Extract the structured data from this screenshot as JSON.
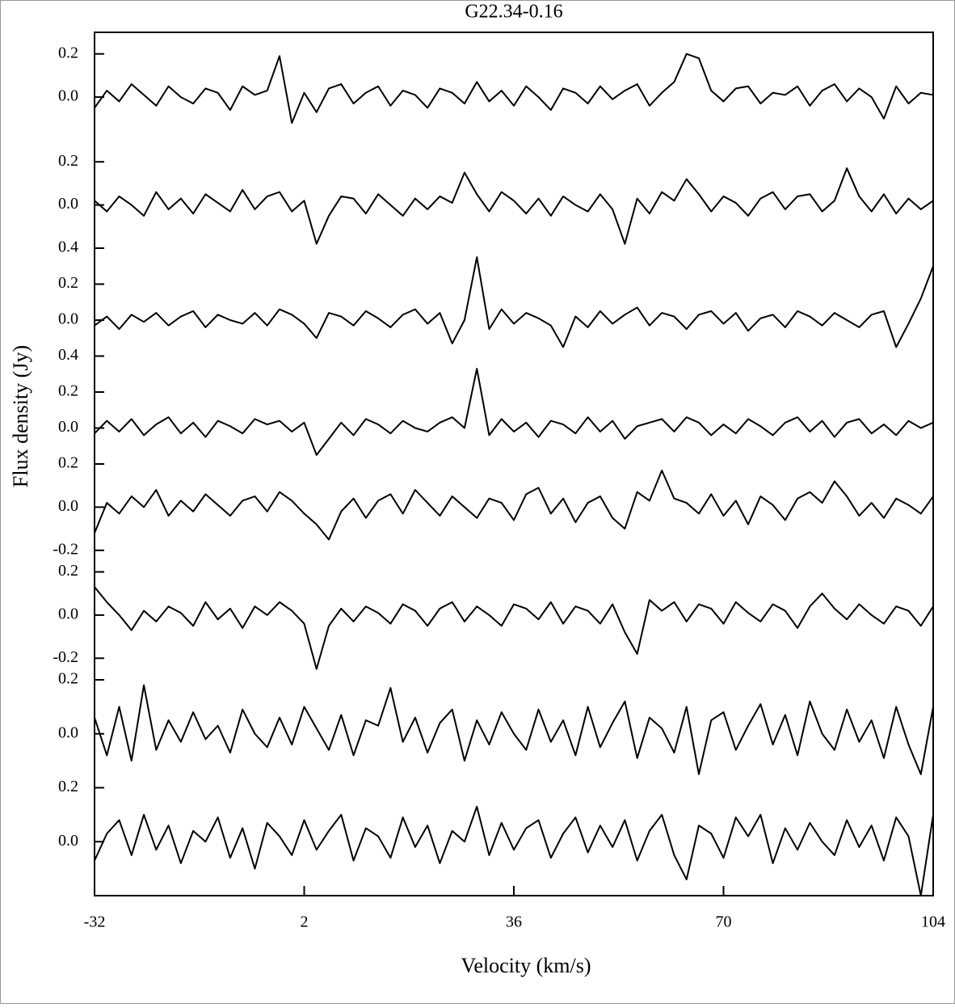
{
  "chart_data": {
    "type": "line",
    "title": "G22.34-0.16",
    "xlabel": "Velocity (km/s)",
    "ylabel": "Flux density (Jy)",
    "color": "#000000",
    "x": [
      -32,
      -30,
      -28,
      -26,
      -24,
      -22,
      -20,
      -18,
      -16,
      -14,
      -12,
      -10,
      -8,
      -6,
      -4,
      -2,
      0,
      2,
      4,
      6,
      8,
      10,
      12,
      14,
      16,
      18,
      20,
      22,
      24,
      26,
      28,
      30,
      32,
      34,
      36,
      38,
      40,
      42,
      44,
      46,
      48,
      50,
      52,
      54,
      56,
      58,
      60,
      62,
      64,
      66,
      68,
      70,
      72,
      74,
      76,
      78,
      80,
      82,
      84,
      86,
      88,
      90,
      92,
      94,
      96,
      98,
      100,
      102,
      104
    ],
    "xlim": [
      -32,
      104
    ],
    "xticks": [
      -32,
      2,
      36,
      70,
      104
    ],
    "series": [
      {
        "ylim": [
          -0.2,
          0.3
        ],
        "yticks": [
          0.2,
          {
            "value": 0,
            "label": "0.0"
          }
        ],
        "values": [
          -0.05,
          0.03,
          -0.02,
          0.06,
          0.01,
          -0.04,
          0.05,
          0.0,
          -0.03,
          0.04,
          0.02,
          -0.06,
          0.05,
          0.01,
          0.03,
          0.19,
          -0.12,
          0.02,
          -0.07,
          0.04,
          0.06,
          -0.03,
          0.02,
          0.05,
          -0.04,
          0.03,
          0.01,
          -0.05,
          0.04,
          0.02,
          -0.03,
          0.07,
          -0.02,
          0.03,
          -0.04,
          0.05,
          0.0,
          -0.06,
          0.04,
          0.02,
          -0.03,
          0.05,
          -0.01,
          0.03,
          0.06,
          -0.04,
          0.02,
          0.07,
          0.2,
          0.18,
          0.03,
          -0.02,
          0.04,
          0.05,
          -0.03,
          0.02,
          0.01,
          0.05,
          -0.04,
          0.03,
          0.06,
          -0.02,
          0.04,
          0.0,
          -0.1,
          0.05,
          -0.03,
          0.02,
          0.01
        ]
      },
      {
        "ylim": [
          -0.2,
          0.3
        ],
        "yticks": [
          0.2,
          {
            "value": 0,
            "label": "0.0"
          }
        ],
        "values": [
          0.02,
          -0.03,
          0.04,
          0.0,
          -0.05,
          0.06,
          -0.02,
          0.03,
          -0.04,
          0.05,
          0.01,
          -0.03,
          0.07,
          -0.02,
          0.04,
          0.06,
          -0.03,
          0.02,
          -0.18,
          -0.05,
          0.04,
          0.03,
          -0.04,
          0.05,
          0.0,
          -0.05,
          0.03,
          -0.02,
          0.04,
          0.01,
          0.15,
          0.05,
          -0.03,
          0.06,
          0.02,
          -0.04,
          0.03,
          -0.05,
          0.04,
          0.0,
          -0.03,
          0.05,
          -0.02,
          -0.18,
          0.03,
          -0.04,
          0.06,
          0.02,
          0.12,
          0.05,
          -0.03,
          0.04,
          0.01,
          -0.05,
          0.03,
          0.06,
          -0.02,
          0.04,
          0.05,
          -0.03,
          0.02,
          0.17,
          0.04,
          -0.03,
          0.05,
          -0.04,
          0.03,
          -0.02,
          0.02
        ]
      },
      {
        "ylim": [
          -0.2,
          0.4
        ],
        "yticks": [
          0.4,
          0.2,
          {
            "value": 0,
            "label": "0.0"
          }
        ],
        "values": [
          -0.03,
          0.02,
          -0.05,
          0.03,
          -0.01,
          0.04,
          -0.03,
          0.02,
          0.05,
          -0.04,
          0.03,
          0.0,
          -0.02,
          0.04,
          -0.03,
          0.06,
          0.03,
          -0.02,
          -0.1,
          0.04,
          0.02,
          -0.03,
          0.05,
          0.01,
          -0.04,
          0.03,
          0.06,
          -0.02,
          0.04,
          -0.13,
          0.0,
          0.35,
          -0.05,
          0.06,
          -0.02,
          0.04,
          0.01,
          -0.03,
          -0.15,
          0.02,
          -0.04,
          0.05,
          -0.02,
          0.03,
          0.07,
          -0.03,
          0.04,
          0.02,
          -0.05,
          0.03,
          0.05,
          -0.02,
          0.04,
          -0.06,
          0.01,
          0.03,
          -0.04,
          0.05,
          0.02,
          -0.03,
          0.04,
          0.0,
          -0.04,
          0.03,
          0.05,
          -0.15,
          -0.02,
          0.12,
          0.3
        ]
      },
      {
        "ylim": [
          -0.2,
          0.4
        ],
        "yticks": [
          0.4,
          0.2,
          {
            "value": 0,
            "label": "0.0"
          }
        ],
        "values": [
          -0.03,
          0.04,
          -0.02,
          0.05,
          -0.04,
          0.02,
          0.06,
          -0.03,
          0.03,
          -0.05,
          0.04,
          0.01,
          -0.03,
          0.05,
          0.02,
          0.04,
          -0.02,
          0.03,
          -0.15,
          -0.06,
          0.03,
          -0.04,
          0.05,
          0.02,
          -0.03,
          0.04,
          0.0,
          -0.02,
          0.03,
          0.06,
          0.0,
          0.33,
          -0.04,
          0.05,
          -0.02,
          0.03,
          -0.05,
          0.04,
          0.02,
          -0.03,
          0.06,
          -0.02,
          0.04,
          -0.06,
          0.01,
          0.03,
          0.05,
          -0.02,
          0.06,
          0.03,
          -0.04,
          0.02,
          -0.03,
          0.05,
          0.01,
          -0.04,
          0.03,
          0.06,
          -0.02,
          0.04,
          -0.05,
          0.03,
          0.05,
          -0.03,
          0.02,
          -0.04,
          0.04,
          0.0,
          0.03
        ]
      },
      {
        "ylim": [
          -0.3,
          0.2
        ],
        "yticks": [
          0.2,
          {
            "value": 0,
            "label": "0.0"
          },
          -0.2
        ],
        "values": [
          -0.12,
          0.02,
          -0.03,
          0.05,
          0.0,
          0.08,
          -0.04,
          0.03,
          -0.02,
          0.06,
          0.01,
          -0.04,
          0.03,
          0.05,
          -0.02,
          0.07,
          0.03,
          -0.03,
          -0.08,
          -0.15,
          -0.02,
          0.04,
          -0.05,
          0.03,
          0.06,
          -0.03,
          0.08,
          0.02,
          -0.04,
          0.05,
          0.0,
          -0.05,
          0.04,
          0.02,
          -0.06,
          0.06,
          0.09,
          -0.03,
          0.04,
          -0.07,
          0.02,
          0.05,
          -0.05,
          -0.1,
          0.07,
          0.03,
          0.17,
          0.04,
          0.02,
          -0.03,
          0.06,
          -0.04,
          0.03,
          -0.08,
          0.05,
          0.01,
          -0.06,
          0.04,
          0.07,
          0.02,
          0.12,
          0.05,
          -0.04,
          0.02,
          -0.05,
          0.04,
          0.01,
          -0.03,
          0.05
        ]
      },
      {
        "ylim": [
          -0.3,
          0.2
        ],
        "yticks": [
          0.2,
          {
            "value": 0,
            "label": "0.0"
          },
          -0.2
        ],
        "values": [
          0.13,
          0.06,
          0.0,
          -0.07,
          0.02,
          -0.03,
          0.04,
          0.01,
          -0.05,
          0.06,
          -0.02,
          0.03,
          -0.06,
          0.04,
          0.0,
          0.06,
          0.02,
          -0.04,
          -0.25,
          -0.05,
          0.03,
          -0.03,
          0.04,
          0.01,
          -0.04,
          0.05,
          0.02,
          -0.05,
          0.03,
          0.06,
          -0.03,
          0.04,
          0.0,
          -0.05,
          0.05,
          0.03,
          -0.02,
          0.06,
          -0.04,
          0.04,
          0.02,
          -0.04,
          0.05,
          -0.08,
          -0.18,
          0.07,
          0.02,
          0.06,
          -0.03,
          0.05,
          0.03,
          -0.04,
          0.06,
          0.01,
          -0.03,
          0.05,
          0.02,
          -0.06,
          0.04,
          0.1,
          0.03,
          -0.02,
          0.05,
          0.0,
          -0.04,
          0.04,
          0.02,
          -0.05,
          0.04
        ]
      },
      {
        "ylim": [
          -0.2,
          0.2
        ],
        "yticks": [
          0.2,
          {
            "value": 0,
            "label": "0.0"
          }
        ],
        "values": [
          0.06,
          -0.08,
          0.1,
          -0.1,
          0.18,
          -0.06,
          0.05,
          -0.03,
          0.08,
          -0.02,
          0.03,
          -0.07,
          0.09,
          0.0,
          -0.05,
          0.06,
          -0.04,
          0.1,
          0.02,
          -0.06,
          0.07,
          -0.08,
          0.05,
          0.03,
          0.17,
          -0.03,
          0.06,
          -0.07,
          0.04,
          0.09,
          -0.1,
          0.05,
          -0.04,
          0.08,
          0.0,
          -0.06,
          0.09,
          -0.03,
          0.05,
          -0.08,
          0.1,
          -0.05,
          0.04,
          0.12,
          -0.09,
          0.06,
          0.02,
          -0.07,
          0.1,
          -0.15,
          0.05,
          0.08,
          -0.06,
          0.03,
          0.11,
          -0.04,
          0.07,
          -0.08,
          0.12,
          0.0,
          -0.06,
          0.09,
          -0.03,
          0.05,
          -0.09,
          0.1,
          -0.04,
          -0.15,
          0.1
        ]
      },
      {
        "ylim": [
          -0.2,
          0.2
        ],
        "yticks": [
          0.2,
          {
            "value": 0,
            "label": "0.0"
          }
        ],
        "values": [
          -0.07,
          0.03,
          0.08,
          -0.05,
          0.1,
          -0.03,
          0.06,
          -0.08,
          0.04,
          0.0,
          0.09,
          -0.06,
          0.05,
          -0.1,
          0.07,
          0.02,
          -0.05,
          0.08,
          -0.03,
          0.04,
          0.1,
          -0.07,
          0.05,
          0.02,
          -0.06,
          0.09,
          -0.02,
          0.06,
          -0.08,
          0.04,
          0.0,
          0.13,
          -0.05,
          0.07,
          -0.03,
          0.05,
          0.08,
          -0.06,
          0.03,
          0.09,
          -0.04,
          0.06,
          -0.02,
          0.08,
          -0.07,
          0.04,
          0.1,
          -0.05,
          -0.14,
          0.06,
          0.03,
          -0.06,
          0.09,
          0.02,
          0.1,
          -0.08,
          0.05,
          -0.03,
          0.07,
          0.0,
          -0.05,
          0.08,
          -0.02,
          0.06,
          -0.07,
          0.09,
          0.02,
          -0.2,
          0.1
        ]
      }
    ]
  }
}
